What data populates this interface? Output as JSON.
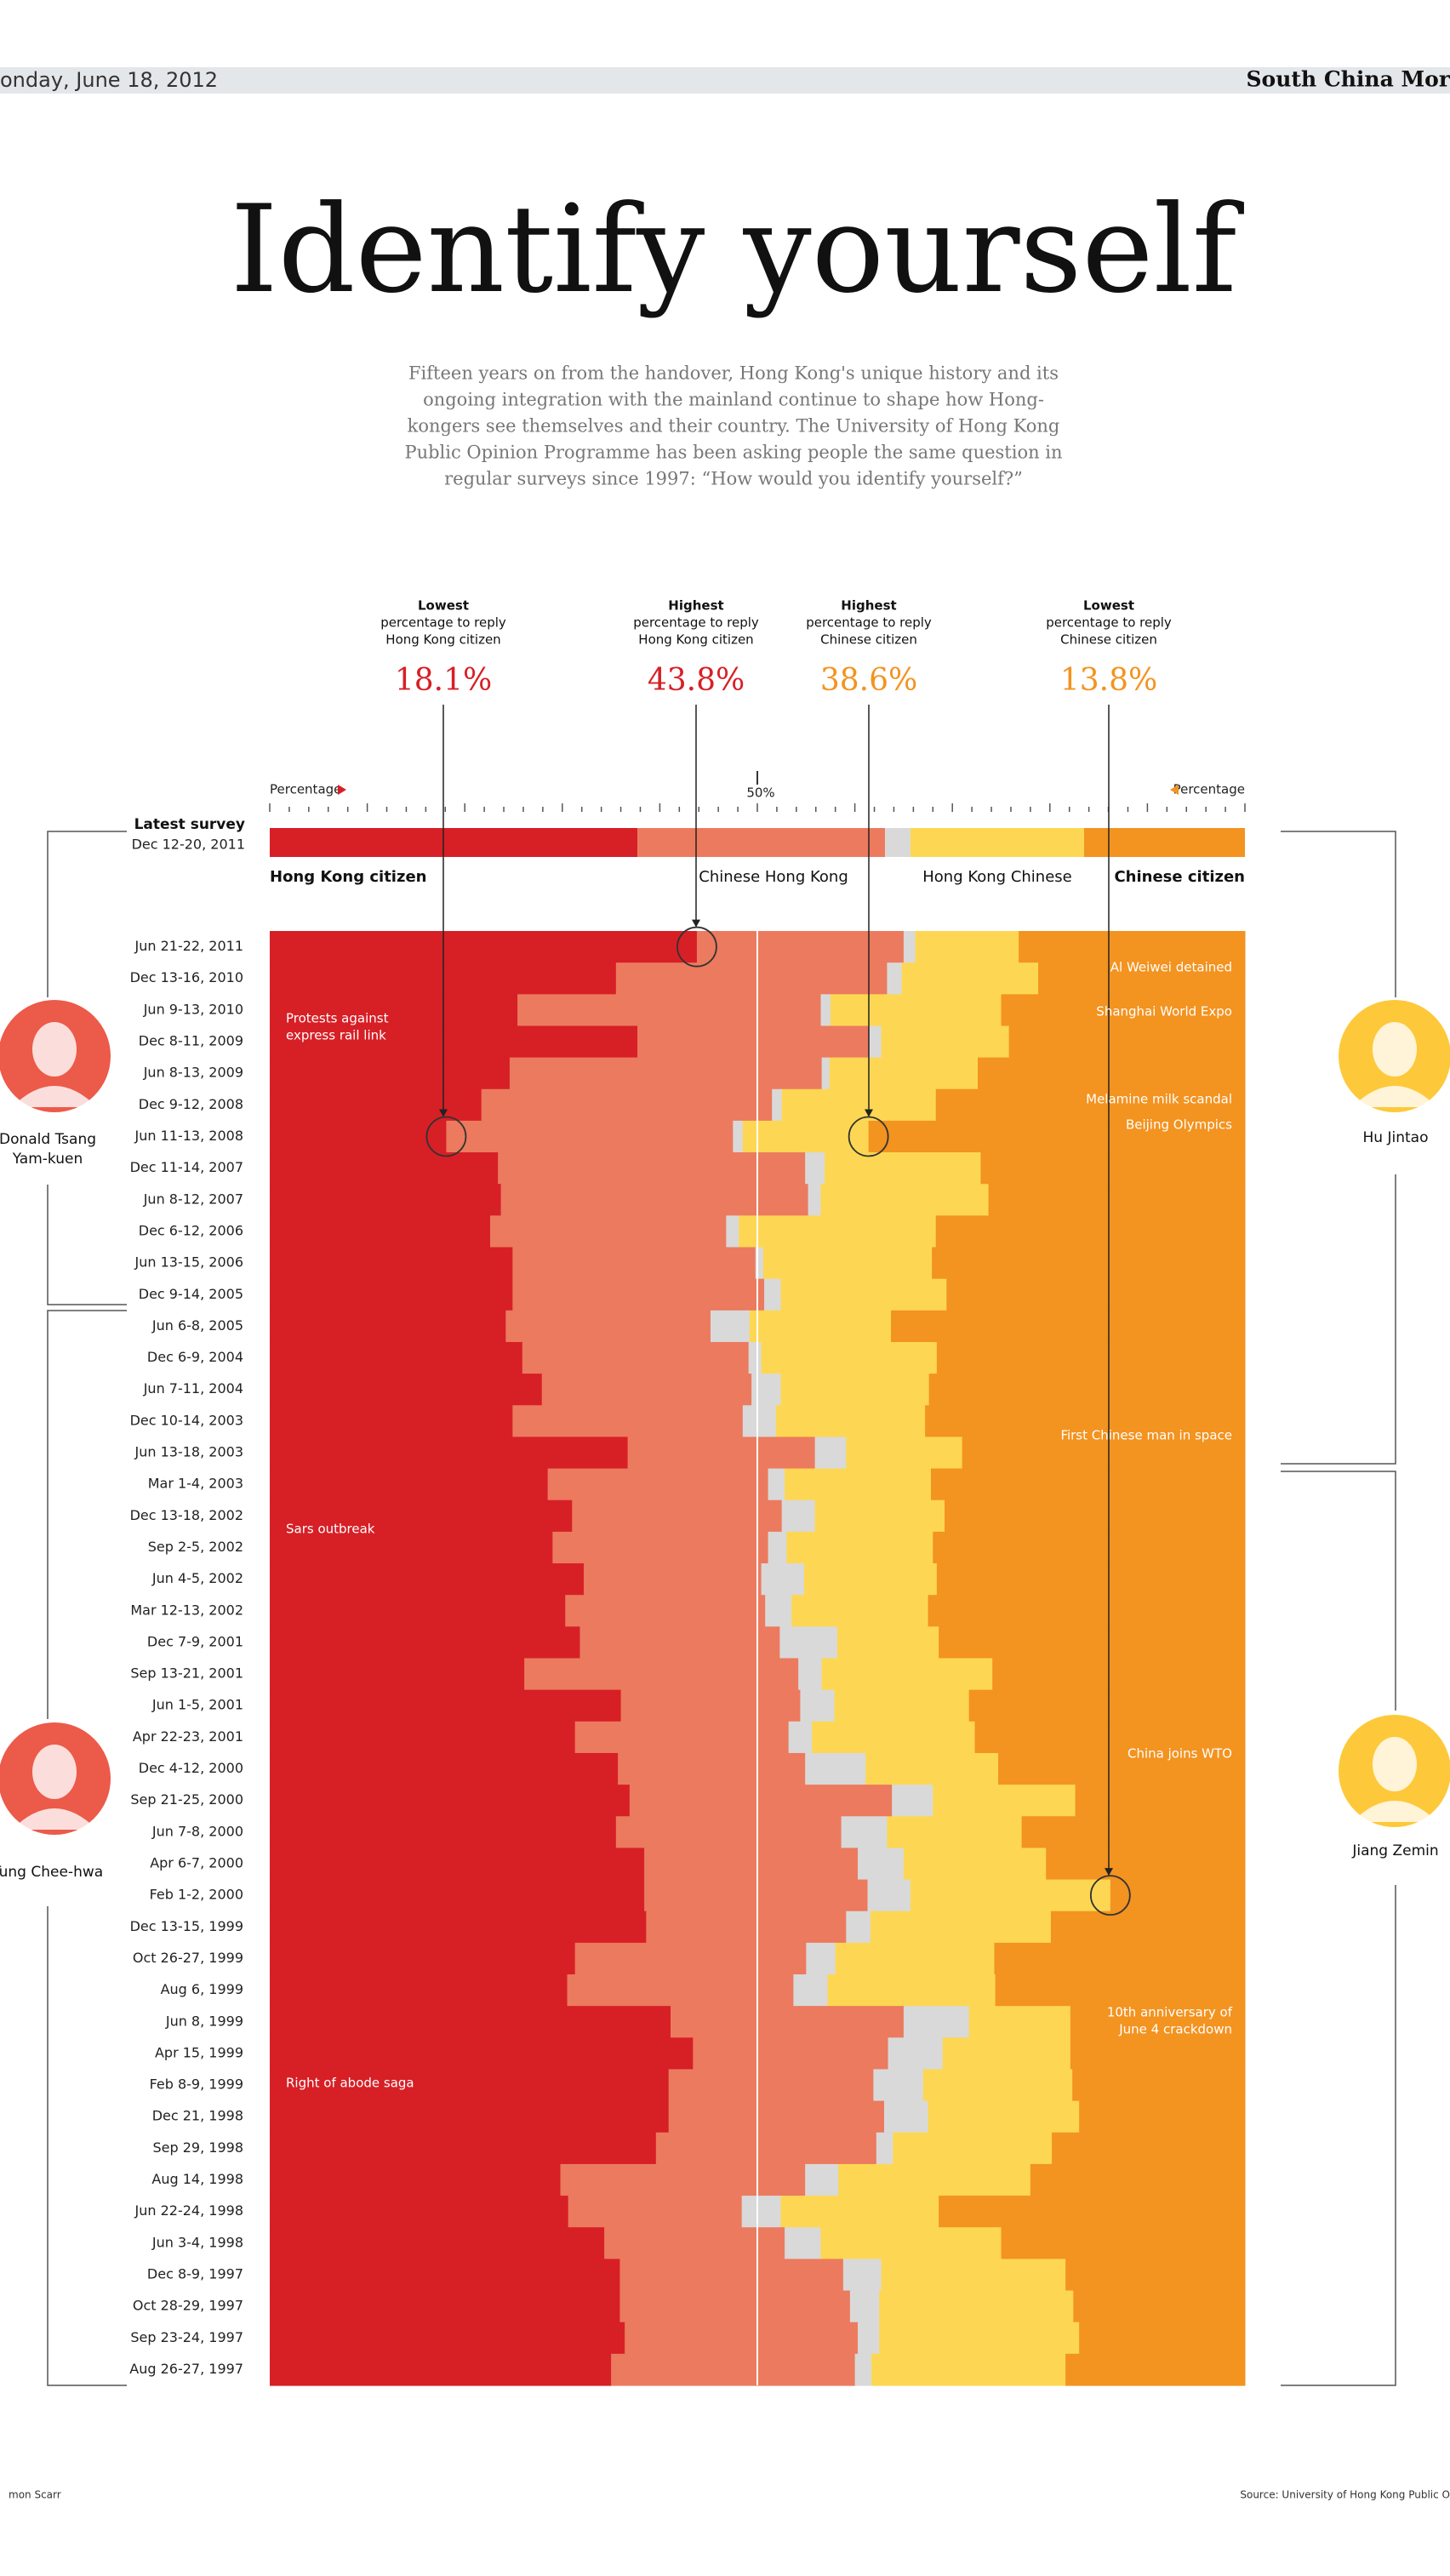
{
  "header": {
    "date": "onday, June 18, 2012",
    "masthead": "South China Mor"
  },
  "footer": {
    "credit": "mon Scarr",
    "source": "Source: University of Hong Kong Public O"
  },
  "chart_data": {
    "type": "stacked-bar-horizontal",
    "title": "Identify yourself",
    "subtitle": [
      "Fifteen years on from the handover, Hong Kong's unique history and its",
      "ongoing integration with the mainland continue to shape how Hong-",
      "kongers see themselves and their country. The University of Hong Kong",
      "Public Opinion Programme has been asking people the same question in",
      "regular surveys since 1997: “How would you identify yourself?”"
    ],
    "x_label_left": "Percentage",
    "x_label_right": "Percentage",
    "xlim": [
      0,
      100
    ],
    "xticks": [
      {
        "value": 50,
        "label": "50%"
      }
    ],
    "xticks_minor": [
      0,
      2,
      4,
      6,
      8,
      10,
      12,
      14,
      16,
      18,
      20,
      22,
      24,
      26,
      28,
      30,
      32,
      34,
      36,
      38,
      40,
      42,
      44,
      46,
      48,
      50,
      52,
      54,
      56,
      58,
      60,
      62,
      64,
      66,
      68,
      70,
      72,
      74,
      76,
      78,
      80,
      82,
      84,
      86,
      88,
      90,
      92,
      94,
      96,
      98,
      100
    ],
    "latest_survey": {
      "title": "Latest survey",
      "date": "Dec 12-20, 2011",
      "values": [
        37.7,
        25.4,
        2.6,
        17.8,
        16.5
      ]
    },
    "categories": [
      "Jun 21-22, 2011",
      "Dec 13-16, 2010",
      "Jun 9-13, 2010",
      "Dec 8-11, 2009",
      "Jun 8-13, 2009",
      "Dec 9-12, 2008",
      "Jun 11-13, 2008",
      "Dec 11-14, 2007",
      "Jun 8-12, 2007",
      "Dec 6-12, 2006",
      "Jun 13-15, 2006",
      "Dec 9-14, 2005",
      "Jun 6-8, 2005",
      "Dec 6-9, 2004",
      "Jun 7-11, 2004",
      "Dec 10-14, 2003",
      "Jun 13-18, 2003",
      "Mar 1-4, 2003",
      "Dec 13-18, 2002",
      "Sep 2-5, 2002",
      "Jun 4-5, 2002",
      "Mar 12-13, 2002",
      "Dec 7-9, 2001",
      "Sep 13-21, 2001",
      "Jun 1-5, 2001",
      "Apr 22-23, 2001",
      "Dec 4-12, 2000",
      "Sep 21-25, 2000",
      "Jun 7-8, 2000",
      "Apr 6-7, 2000",
      "Feb 1-2, 2000",
      "Dec 13-15, 1999",
      "Oct 26-27, 1999",
      "Aug 6, 1999",
      "Jun 8, 1999",
      "Apr 15, 1999",
      "Feb 8-9, 1999",
      "Dec 21, 1998",
      "Sep 29, 1998",
      "Aug 14, 1998",
      "Jun 22-24, 1998",
      "Jun 3-4, 1998",
      "Dec 8-9, 1997",
      "Oct 28-29, 1997",
      "Sep 23-24, 1997",
      "Aug 26-27, 1997"
    ],
    "series": [
      {
        "name": "Hong Kong citizen",
        "color": "#d71f26",
        "values": [
          43.8,
          35.5,
          25.4,
          37.7,
          24.6,
          21.7,
          18.1,
          23.4,
          23.7,
          22.6,
          24.9,
          24.9,
          24.2,
          25.9,
          27.9,
          24.9,
          36.7,
          28.5,
          31.0,
          29.0,
          32.2,
          30.3,
          31.8,
          26.1,
          36.0,
          31.3,
          35.7,
          36.9,
          35.5,
          38.4,
          38.4,
          38.6,
          31.3,
          30.5,
          41.1,
          43.4,
          40.9,
          40.9,
          39.6,
          29.8,
          30.6,
          34.3,
          35.9,
          35.9,
          36.4,
          35.0
        ]
      },
      {
        "name": "Chinese Hong Kong",
        "color": "#ec7a5e",
        "values": [
          21.2,
          27.8,
          31.1,
          23.7,
          32.0,
          29.8,
          29.4,
          31.5,
          31.5,
          24.2,
          24.9,
          25.8,
          21.0,
          23.2,
          21.5,
          23.6,
          19.2,
          22.6,
          21.5,
          22.1,
          18.2,
          20.5,
          20.5,
          28.1,
          18.4,
          21.9,
          19.2,
          26.9,
          23.1,
          21.9,
          22.9,
          20.5,
          23.7,
          23.2,
          23.9,
          20.0,
          21.0,
          22.1,
          22.6,
          25.1,
          17.8,
          18.5,
          22.9,
          23.6,
          23.9,
          25.0
        ]
      },
      {
        "color": "#d9d9d9",
        "values": [
          1.2,
          1.5,
          1.0,
          1.3,
          0.8,
          1.0,
          1.0,
          2.0,
          1.3,
          1.3,
          0.8,
          1.7,
          4.0,
          1.3,
          3.0,
          3.4,
          3.2,
          1.7,
          3.4,
          1.9,
          4.4,
          2.7,
          5.9,
          2.4,
          3.5,
          2.4,
          6.2,
          4.2,
          4.7,
          4.7,
          4.4,
          2.5,
          3.0,
          3.5,
          6.7,
          5.6,
          5.1,
          4.5,
          1.7,
          3.4,
          4.0,
          3.7,
          3.9,
          3.0,
          2.2,
          1.7
        ]
      },
      {
        "name": "Hong Kong Chinese",
        "color": "#fdd753",
        "values": [
          10.6,
          14.0,
          17.5,
          13.1,
          15.2,
          15.8,
          12.9,
          16.0,
          17.2,
          20.2,
          17.3,
          17.0,
          14.5,
          18.0,
          15.2,
          15.3,
          11.9,
          15.0,
          13.3,
          15.0,
          13.6,
          14.0,
          10.4,
          17.5,
          13.8,
          16.7,
          13.6,
          14.6,
          13.8,
          14.6,
          20.5,
          18.5,
          16.3,
          17.2,
          10.4,
          13.1,
          15.3,
          15.5,
          16.3,
          19.7,
          16.2,
          18.5,
          18.9,
          19.9,
          20.5,
          19.9
        ]
      },
      {
        "name": "Chinese citizen",
        "color": "#f39320",
        "values": [
          23.2,
          21.2,
          25.0,
          24.2,
          27.4,
          31.7,
          38.6,
          27.1,
          26.3,
          31.7,
          32.1,
          30.6,
          36.3,
          31.6,
          32.4,
          32.8,
          29.0,
          32.2,
          30.8,
          32.0,
          31.6,
          32.5,
          31.4,
          25.9,
          28.3,
          27.7,
          25.3,
          17.4,
          22.9,
          20.4,
          13.8,
          19.9,
          25.7,
          25.6,
          17.9,
          17.9,
          17.7,
          17.0,
          19.8,
          22.0,
          31.4,
          25.0,
          18.4,
          17.6,
          17.0,
          18.4
        ]
      }
    ],
    "callouts": [
      {
        "lines": [
          "Lowest",
          "percentage to reply",
          "Hong Kong citizen"
        ],
        "value": 18.1,
        "value_label": "18.1%",
        "color": "#d71f26",
        "kind": "min"
      },
      {
        "lines": [
          "Highest",
          "percentage to reply",
          "Hong Kong citizen"
        ],
        "value": 43.8,
        "value_label": "43.8%",
        "color": "#d71f26",
        "kind": "max"
      },
      {
        "lines": [
          "Highest",
          "percentage to reply",
          "Chinese citizen"
        ],
        "value": 38.6,
        "value_label": "38.6%",
        "color": "#f39320",
        "kind": "max"
      },
      {
        "lines": [
          "Lowest",
          "percentage to reply",
          "Chinese citizen"
        ],
        "value": 13.8,
        "value_label": "13.8%",
        "color": "#f39320",
        "kind": "min"
      }
    ],
    "events": [
      {
        "lines": [
          "Al Weiwei detained"
        ],
        "side": "right"
      },
      {
        "lines": [
          "Shanghai World Expo"
        ],
        "side": "right"
      },
      {
        "lines": [
          "Protests against",
          "express rail link"
        ],
        "side": "left"
      },
      {
        "lines": [
          "Melamine milk scandal"
        ],
        "side": "right"
      },
      {
        "lines": [
          "Beijing Olympics"
        ],
        "side": "right"
      },
      {
        "lines": [
          "First Chinese man in space"
        ],
        "side": "right"
      },
      {
        "lines": [
          "Sars outbreak"
        ],
        "side": "left"
      },
      {
        "lines": [
          "China joins WTO"
        ],
        "side": "right"
      },
      {
        "lines": [
          "10th anniversary of",
          "June 4 crackdown"
        ],
        "side": "right"
      },
      {
        "lines": [
          "Right of abode saga"
        ],
        "side": "left"
      }
    ],
    "leaders": [
      {
        "lines": [
          "Donald Tsang",
          "Yam-kuen"
        ],
        "color": "#ec5a4a"
      },
      {
        "lines": [
          "Tung Chee-hwa"
        ],
        "color": "#ec5a4a"
      },
      {
        "lines": [
          "Hu Jintao"
        ],
        "color": "#fdc93a"
      },
      {
        "lines": [
          "Jiang Zemin"
        ],
        "color": "#fdc93a"
      }
    ]
  }
}
